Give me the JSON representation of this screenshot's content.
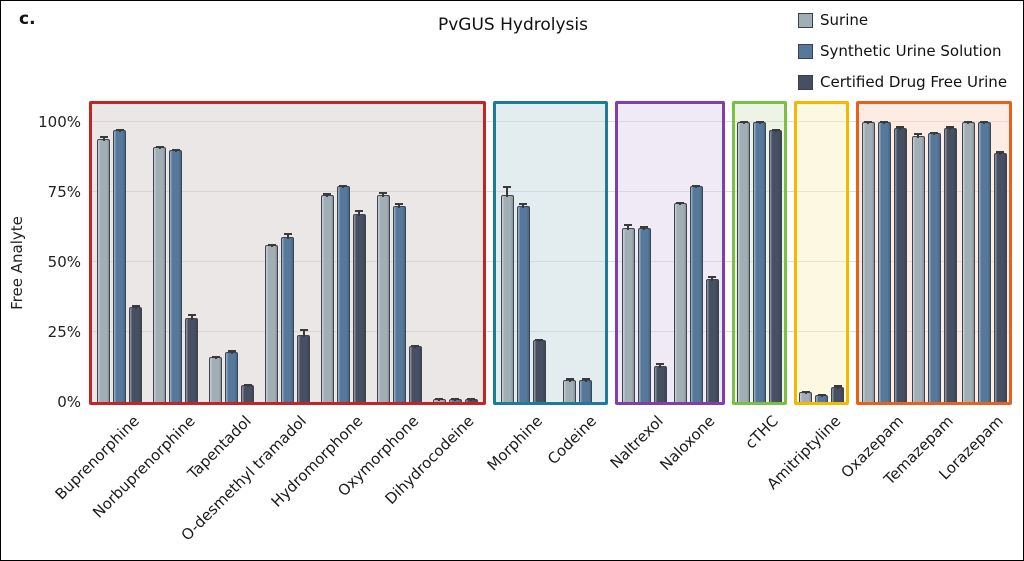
{
  "figure": {
    "corner_label": "c."
  },
  "legend": {
    "position": "top-right"
  },
  "chart_data": {
    "type": "bar",
    "title": "PvGUS Hydrolysis",
    "ylabel": "Free Analyte",
    "ylim": [
      0,
      100
    ],
    "ytick_labels": [
      "0%",
      "25%",
      "50%",
      "75%",
      "100%"
    ],
    "grid": true,
    "legend_position": "top-right",
    "series": [
      {
        "name": "Surine",
        "color": "#a2aeb5"
      },
      {
        "name": "Synthetic Urine Solution",
        "color": "#56789b"
      },
      {
        "name": "Certified Drug Free Urine",
        "color": "#474f63"
      }
    ],
    "groups": [
      {
        "id": "box-red",
        "box_border": "#c42424",
        "box_bg": "#ece7e7",
        "categories": [
          "Buprenorphine",
          "Norbuprenorphine",
          "Tapentadol",
          "O-desmethyl tramadol",
          "Hydromorphone",
          "Oxymorphone",
          "Dihydrocodeine"
        ],
        "values": [
          [
            94,
            97,
            34
          ],
          [
            91,
            90,
            30
          ],
          [
            16,
            18,
            6
          ],
          [
            56,
            59,
            24
          ],
          [
            74,
            77,
            67
          ],
          [
            74,
            70,
            20
          ],
          [
            1,
            1,
            1
          ]
        ],
        "errors": [
          [
            1,
            0.5,
            0.5
          ],
          [
            0.5,
            0.5,
            1.5
          ],
          [
            0.5,
            0.5,
            0.5
          ],
          [
            0.5,
            1.5,
            2
          ],
          [
            0.5,
            0.5,
            1.5
          ],
          [
            1,
            1,
            0.5
          ],
          [
            0.2,
            0.2,
            0.2
          ]
        ]
      },
      {
        "id": "box-teal",
        "box_border": "#1d7d98",
        "box_bg": "#e3edf0",
        "categories": [
          "Morphine",
          "Codeine"
        ],
        "values": [
          [
            74,
            70,
            22
          ],
          [
            8,
            8,
            0
          ]
        ],
        "errors": [
          [
            3,
            1,
            0.5
          ],
          [
            0.5,
            0.5,
            0
          ]
        ]
      },
      {
        "id": "box-purple",
        "box_border": "#8040a8",
        "box_bg": "#f0e9f6",
        "categories": [
          "Naltrexol",
          "Naloxone"
        ],
        "values": [
          [
            62,
            62,
            13
          ],
          [
            71,
            77,
            44
          ]
        ],
        "errors": [
          [
            1.5,
            1,
            1
          ],
          [
            0.5,
            0.5,
            1
          ]
        ]
      },
      {
        "id": "box-green",
        "box_border": "#79c043",
        "box_bg": "#edf3e5",
        "categories": [
          "cTHC"
        ],
        "values": [
          [
            100,
            100,
            97
          ]
        ],
        "errors": [
          [
            0.3,
            0.3,
            0.5
          ]
        ]
      },
      {
        "id": "box-yellow",
        "box_border": "#f5b800",
        "box_bg": "#fdf8e2",
        "categories": [
          "Amitriptyline"
        ],
        "values": [
          [
            3.5,
            2.5,
            5.5
          ]
        ],
        "errors": [
          [
            0.3,
            0.3,
            0.3
          ]
        ]
      },
      {
        "id": "box-orange",
        "box_border": "#e8611c",
        "box_bg": "#fcece3",
        "categories": [
          "Oxazepam",
          "Temazepam",
          "Lorazepam"
        ],
        "values": [
          [
            100,
            100,
            98
          ],
          [
            95,
            96,
            98
          ],
          [
            100,
            100,
            89
          ]
        ],
        "errors": [
          [
            0.3,
            0.3,
            0.5
          ],
          [
            1,
            0.5,
            0.5
          ],
          [
            0.3,
            0.3,
            0.5
          ]
        ]
      }
    ]
  }
}
